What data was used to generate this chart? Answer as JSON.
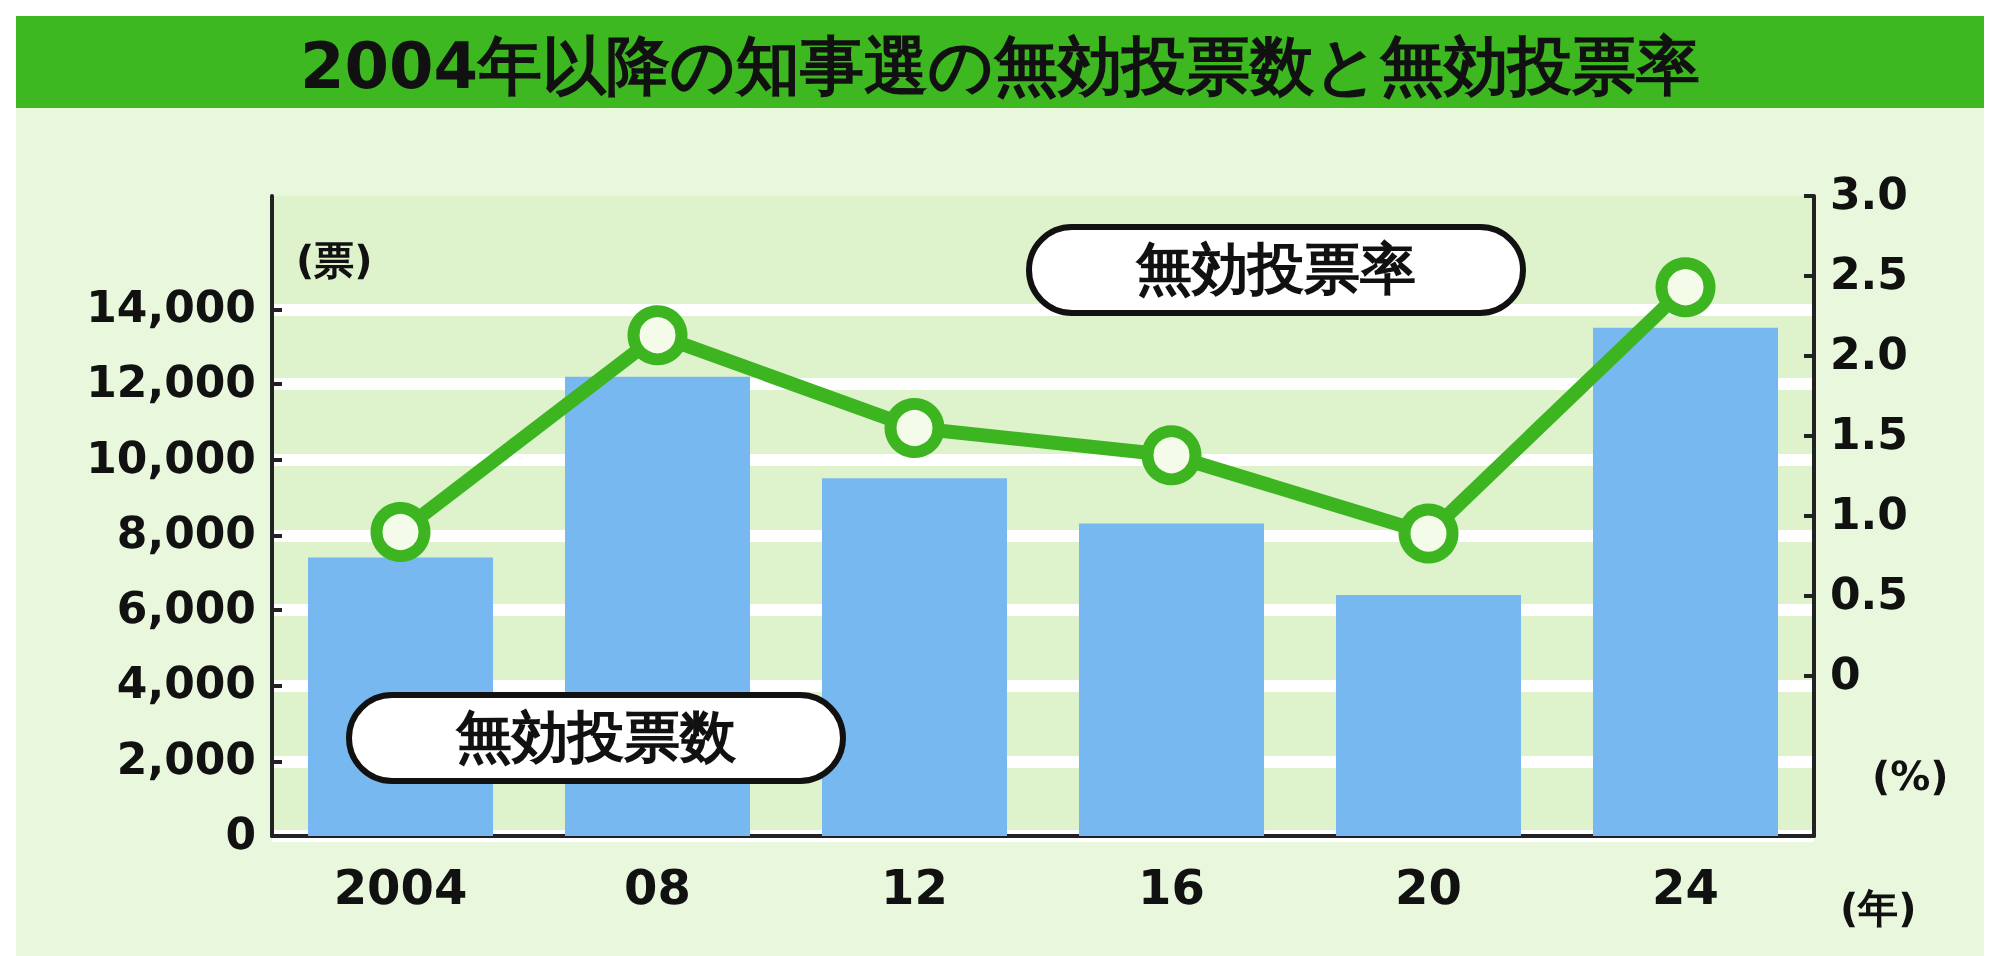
{
  "chart_data": {
    "type": "bar",
    "title": "2004年以降の知事選の無効投票数と無効投票率",
    "ylabel": "(票)",
    "y2label": "(%)",
    "xlabel": "(年)",
    "categories": [
      "2004",
      "08",
      "12",
      "16",
      "20",
      "24"
    ],
    "series": [
      {
        "name": "無効投票数",
        "color": "#78b8f0",
        "values": [
          7400,
          12200,
          9500,
          8300,
          6400,
          13500
        ]
      },
      {
        "name": "無効投票率",
        "type": "line",
        "axis": "y2",
        "color": "#3cb521",
        "marker": "circle",
        "values": [
          0.9,
          2.13,
          1.55,
          1.38,
          0.89,
          2.43
        ]
      }
    ],
    "ylim": [
      0,
      17000
    ],
    "yticks": [
      {
        "value": 0,
        "label": "0"
      },
      {
        "value": 2000,
        "label": "2,000"
      },
      {
        "value": 4000,
        "label": "4,000"
      },
      {
        "value": 6000,
        "label": "6,000"
      },
      {
        "value": 8000,
        "label": "8,000"
      },
      {
        "value": 10000,
        "label": "10,000"
      },
      {
        "value": 12000,
        "label": "12,000"
      },
      {
        "value": 14000,
        "label": "14,000"
      }
    ],
    "y2lim": [
      -1,
      3
    ],
    "y2ticks": [
      {
        "value": 0,
        "label": "0"
      },
      {
        "value": 0.5,
        "label": "0.5"
      },
      {
        "value": 1,
        "label": "1.0"
      },
      {
        "value": 1.5,
        "label": "1.5"
      },
      {
        "value": 2,
        "label": "2.0"
      },
      {
        "value": 2.5,
        "label": "2.5"
      },
      {
        "value": 3,
        "label": "3.0"
      }
    ],
    "grid": "y",
    "legend": false
  }
}
